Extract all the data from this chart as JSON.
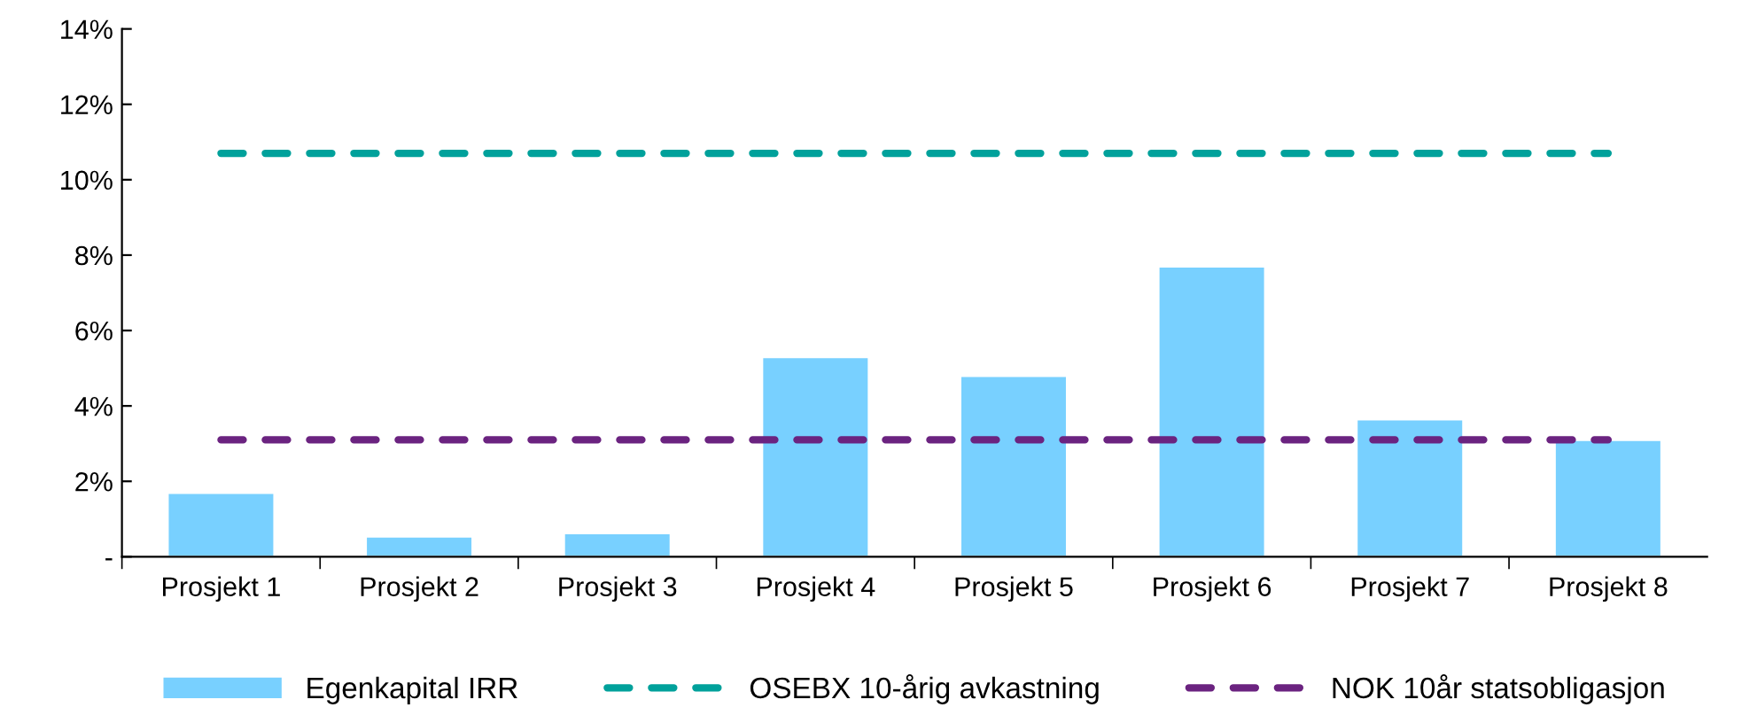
{
  "chart_data": {
    "type": "bar",
    "categories": [
      "Prosjekt 1",
      "Prosjekt 2",
      "Prosjekt 3",
      "Prosjekt 4",
      "Prosjekt 5",
      "Prosjekt 6",
      "Prosjekt 7",
      "Prosjekt 8"
    ],
    "series": [
      {
        "name": "Egenkapital IRR",
        "color": "#78d0ff",
        "values": [
          1.7,
          0.54,
          0.63,
          5.3,
          4.8,
          7.7,
          3.65,
          3.1
        ]
      },
      {
        "name": "OSEBX 10-årig avkastning",
        "type": "line",
        "color": "#00a19b",
        "line_style": "dashed",
        "values": [
          10.7,
          10.7,
          10.7,
          10.7,
          10.7,
          10.7,
          10.7,
          10.7
        ]
      },
      {
        "name": "NOK 10år statsobligasjon",
        "type": "line",
        "color": "#6b2380",
        "line_style": "dashed",
        "values": [
          3.1,
          3.1,
          3.1,
          3.1,
          3.1,
          3.1,
          3.1,
          3.1
        ]
      }
    ],
    "ylim": [
      0,
      14
    ],
    "yticks": [
      {
        "value": 0,
        "label": "-"
      },
      {
        "value": 2,
        "label": "2%"
      },
      {
        "value": 4,
        "label": "4%"
      },
      {
        "value": 6,
        "label": "6%"
      },
      {
        "value": 8,
        "label": "8%"
      },
      {
        "value": 10,
        "label": "10%"
      },
      {
        "value": 12,
        "label": "12%"
      },
      {
        "value": 14,
        "label": "14%"
      }
    ],
    "grid": false,
    "legend": "bottom"
  }
}
